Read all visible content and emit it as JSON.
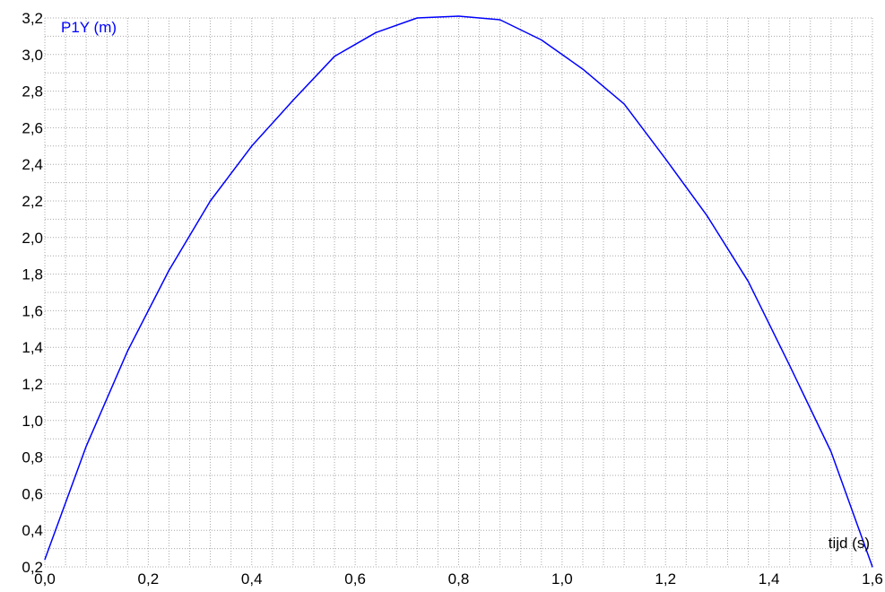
{
  "chart_data": {
    "type": "line",
    "ylabel": "P1Y (m)",
    "xlabel": "tijd (s)",
    "xlim": [
      0.0,
      1.6
    ],
    "ylim": [
      0.2,
      3.2
    ],
    "x_ticks": [
      "0,0",
      "0,2",
      "0,4",
      "0,6",
      "0,8",
      "1,0",
      "1,2",
      "1,4",
      "1,6"
    ],
    "y_ticks": [
      "0,2",
      "0,4",
      "0,6",
      "0,8",
      "1,0",
      "1,2",
      "1,4",
      "1,6",
      "1,8",
      "2,0",
      "2,2",
      "2,4",
      "2,6",
      "2,8",
      "3,0",
      "3,2"
    ],
    "x_tick_values": [
      0.0,
      0.2,
      0.4,
      0.6,
      0.8,
      1.0,
      1.2,
      1.4,
      1.6
    ],
    "y_tick_values": [
      0.2,
      0.4,
      0.6,
      0.8,
      1.0,
      1.2,
      1.4,
      1.6,
      1.8,
      2.0,
      2.2,
      2.4,
      2.6,
      2.8,
      3.0,
      3.2
    ],
    "grid": true,
    "colors": {
      "line": "#0000ff",
      "grid": "#a8a8a8",
      "ylabel": "#0000ff",
      "xlabel": "#000000"
    },
    "series": [
      {
        "x": [
          0.0,
          0.08,
          0.16,
          0.24,
          0.32,
          0.4,
          0.48,
          0.56,
          0.64,
          0.72,
          0.8,
          0.88,
          0.96,
          1.04,
          1.12,
          1.2,
          1.28,
          1.36,
          1.44,
          1.52,
          1.6
        ],
        "y": [
          0.24,
          0.86,
          1.38,
          1.82,
          2.2,
          2.5,
          2.75,
          2.99,
          3.12,
          3.2,
          3.21,
          3.19,
          3.08,
          2.92,
          2.73,
          2.43,
          2.12,
          1.76,
          1.3,
          0.83,
          0.2
        ]
      }
    ]
  }
}
